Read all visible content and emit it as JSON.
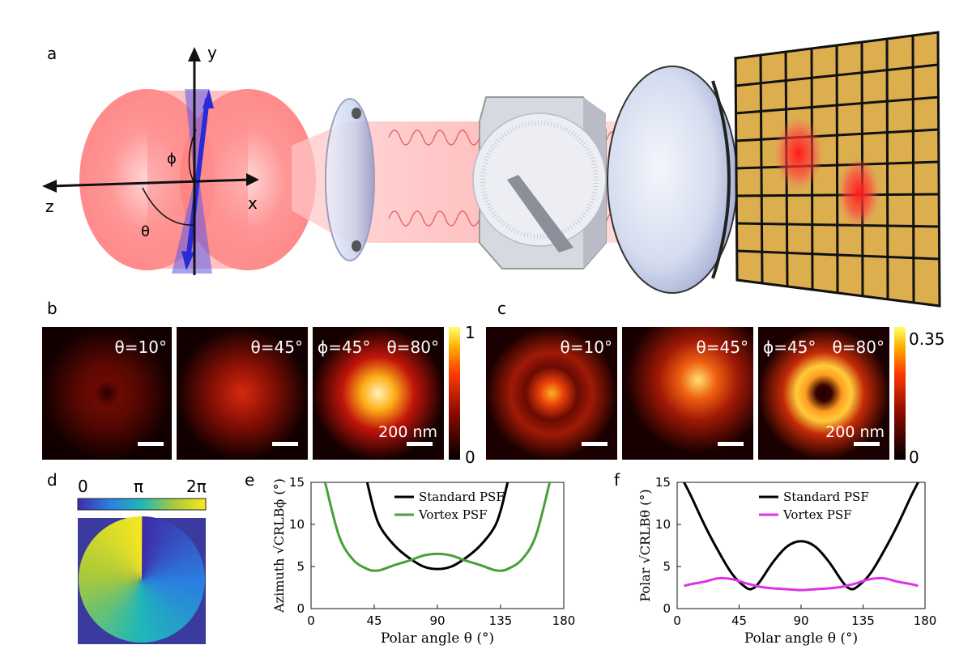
{
  "panel_labels": {
    "a": "a",
    "b": "b",
    "c": "c",
    "d": "d",
    "e": "e",
    "f": "f"
  },
  "panel_a": {
    "axes": {
      "y": "y",
      "x": "x",
      "z": "z",
      "phi": "ϕ",
      "theta": "θ"
    },
    "colors": {
      "emission": "#ff6b6b",
      "dipole": "#2a2ad6",
      "camera": "#dcae4e",
      "grid": "#111111",
      "lens": "#c9d2ee"
    }
  },
  "panel_b": {
    "tiles": [
      {
        "label": "θ=10°",
        "type": "ring-faint"
      },
      {
        "label": "θ=45°",
        "type": "blob-medium"
      },
      {
        "label_phi": "ϕ=45°",
        "label": "θ=80°",
        "type": "blob-bright"
      }
    ],
    "colorbar": {
      "max": "1",
      "min": "0"
    },
    "scalebar": "200 nm"
  },
  "panel_c": {
    "tiles": [
      {
        "label": "θ=10°",
        "type": "center-spot"
      },
      {
        "label": "θ=45°",
        "type": "offset-spot"
      },
      {
        "label_phi": "ϕ=45°",
        "label": "θ=80°",
        "type": "donut"
      }
    ],
    "colorbar": {
      "max": "0.35",
      "min": "0"
    },
    "scalebar": "200 nm"
  },
  "panel_d": {
    "colorbar_labels": [
      "0",
      "π",
      "2π"
    ],
    "colors": {
      "background": "#3b3b9f"
    }
  },
  "chart_data": [
    {
      "type": "line",
      "panel": "e",
      "xlabel": "Polar angle θ (°)",
      "ylabel_prefix": "Azimuth",
      "ylabel_math": "√CRLBϕ (°)",
      "xlim": [
        0,
        180
      ],
      "ylim": [
        0,
        15
      ],
      "xticks": [
        0,
        45,
        90,
        135,
        180
      ],
      "yticks": [
        0,
        5,
        10,
        15
      ],
      "x": [
        10,
        20,
        30,
        40,
        45,
        50,
        60,
        70,
        80,
        90,
        100,
        110,
        120,
        130,
        135,
        140,
        150,
        160,
        170
      ],
      "series": [
        {
          "name": "Standard PSF",
          "color": "#000000",
          "values": [
            null,
            null,
            null,
            15.0,
            11.6,
            9.5,
            7.4,
            6.0,
            5.0,
            4.7,
            5.0,
            6.0,
            7.4,
            9.5,
            11.6,
            15.0,
            null,
            null,
            null
          ]
        },
        {
          "name": "Vortex PSF",
          "color": "#4a9e3c",
          "values": [
            15.0,
            8.6,
            5.8,
            4.7,
            4.5,
            4.6,
            5.2,
            5.7,
            6.3,
            6.5,
            6.3,
            5.7,
            5.2,
            4.6,
            4.5,
            4.7,
            5.8,
            8.6,
            15.0
          ]
        }
      ]
    },
    {
      "type": "line",
      "panel": "f",
      "xlabel": "Polar angle θ (°)",
      "ylabel_prefix": "Polar",
      "ylabel_math": "√CRLBθ (°)",
      "xlim": [
        0,
        180
      ],
      "ylim": [
        0,
        15
      ],
      "xticks": [
        0,
        45,
        90,
        135,
        180
      ],
      "yticks": [
        0,
        5,
        10,
        15
      ],
      "x": [
        5,
        10,
        20,
        30,
        40,
        50,
        55,
        60,
        70,
        80,
        90,
        100,
        110,
        120,
        125,
        130,
        140,
        150,
        160,
        170,
        175
      ],
      "series": [
        {
          "name": "Standard PSF",
          "color": "#000000",
          "values": [
            15.0,
            13.4,
            9.9,
            6.8,
            4.1,
            2.5,
            2.4,
            3.2,
            5.6,
            7.4,
            8.0,
            7.4,
            5.6,
            3.2,
            2.4,
            2.5,
            4.1,
            6.8,
            9.9,
            13.4,
            15.0
          ]
        },
        {
          "name": "Vortex PSF",
          "color": "#e030e8",
          "values": [
            2.7,
            2.9,
            3.2,
            3.6,
            3.5,
            3.0,
            2.8,
            2.6,
            2.4,
            2.3,
            2.2,
            2.3,
            2.4,
            2.6,
            2.8,
            3.0,
            3.5,
            3.6,
            3.2,
            2.9,
            2.7
          ]
        }
      ]
    }
  ]
}
